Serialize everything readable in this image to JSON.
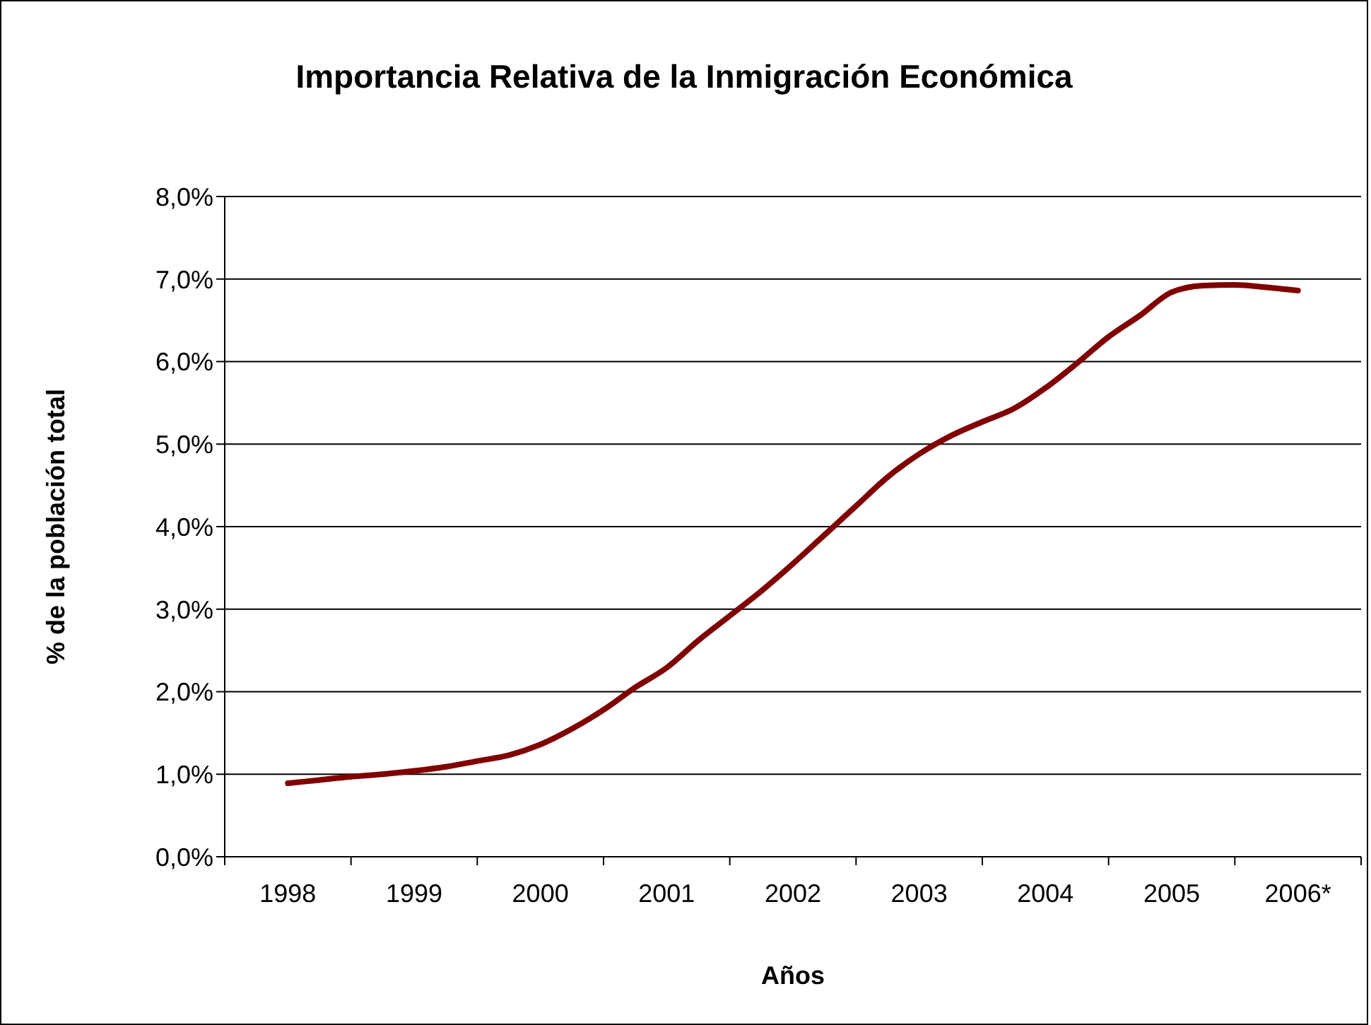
{
  "chart_data": {
    "type": "line",
    "title": "Importancia Relativa de la Inmigración Económica",
    "xlabel": "Años",
    "ylabel": "% de la población total",
    "categories": [
      "1998",
      null,
      null,
      null,
      "1999",
      null,
      null,
      null,
      "2000",
      null,
      null,
      null,
      "2001",
      null,
      null,
      null,
      "2002",
      null,
      null,
      null,
      "2003",
      null,
      null,
      null,
      "2004",
      null,
      null,
      null,
      "2005",
      null,
      null,
      null,
      "2006*"
    ],
    "series": [
      {
        "color": "#800000",
        "values": [
          0.89,
          0.93,
          0.97,
          1.0,
          1.04,
          1.09,
          1.16,
          1.23,
          1.36,
          1.55,
          1.78,
          2.05,
          2.29,
          2.62,
          2.92,
          3.22,
          3.55,
          3.9,
          4.25,
          4.6,
          4.88,
          5.1,
          5.27,
          5.43,
          5.68,
          5.98,
          6.3,
          6.56,
          6.84,
          6.92,
          6.93,
          6.9,
          6.86
        ]
      }
    ],
    "ylim": [
      0,
      8
    ],
    "yticks": [
      {
        "value": 0,
        "label": "0,0%"
      },
      {
        "value": 1,
        "label": "1,0%"
      },
      {
        "value": 2,
        "label": "2,0%"
      },
      {
        "value": 3,
        "label": "3,0%"
      },
      {
        "value": 4,
        "label": "4,0%"
      },
      {
        "value": 5,
        "label": "5,0%"
      },
      {
        "value": 6,
        "label": "6,0%"
      },
      {
        "value": 7,
        "label": "7,0%"
      },
      {
        "value": 8,
        "label": "8,0%"
      }
    ],
    "grid": "y",
    "legend": false,
    "marker": "none",
    "line_style": "solid"
  }
}
